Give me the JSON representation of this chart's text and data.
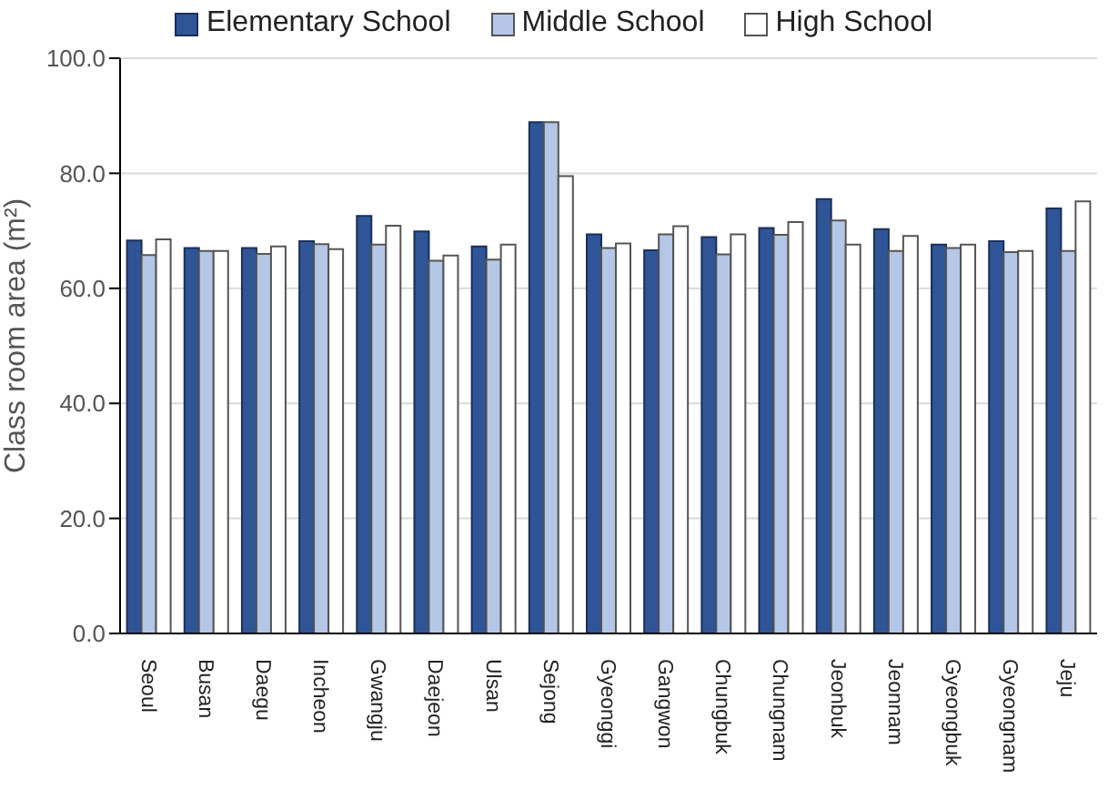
{
  "chart_data": {
    "type": "bar",
    "ylabel": "Class room area (m²)",
    "categories": [
      "Seoul",
      "Busan",
      "Daegu",
      "Incheon",
      "Gwangju",
      "Daejeon",
      "Ulsan",
      "Sejong",
      "Gyeonggi",
      "Gangwon",
      "Chungbuk",
      "Chungnam",
      "Jeonbuk",
      "Jeonnam",
      "Gyeongbuk",
      "Gyeongnam",
      "Jeju"
    ],
    "series": [
      {
        "name": "Elementary School",
        "color": "#2f5597",
        "values": [
          68.3,
          67,
          67,
          68.2,
          72.6,
          69.9,
          67.3,
          88.9,
          69.4,
          66.6,
          68.9,
          70.5,
          75.5,
          70.3,
          67.6,
          68.2,
          73.9
        ]
      },
      {
        "name": "Middle School",
        "color": "#b4c7e7",
        "values": [
          65.8,
          66.5,
          66,
          67.7,
          67.6,
          64.8,
          65,
          88.9,
          67,
          69.4,
          65.9,
          69.3,
          71.8,
          66.5,
          67,
          66.3,
          66.5
        ]
      },
      {
        "name": "High School",
        "color": "#ffffff",
        "values": [
          68.5,
          66.5,
          67.3,
          66.8,
          70.9,
          65.7,
          67.6,
          79.5,
          67.8,
          70.8,
          69.4,
          71.5,
          67.6,
          69.1,
          67.6,
          66.5,
          75.1
        ]
      }
    ],
    "ylim": [
      0,
      100
    ],
    "yticks": [
      {
        "value": 0,
        "label": "0.0"
      },
      {
        "value": 20,
        "label": "20.0"
      },
      {
        "value": 40,
        "label": "40.0"
      },
      {
        "value": 60,
        "label": "60.0"
      },
      {
        "value": 80,
        "label": "80.0"
      },
      {
        "value": 100,
        "label": "100.0"
      }
    ],
    "grid": "y",
    "legend": "top"
  }
}
